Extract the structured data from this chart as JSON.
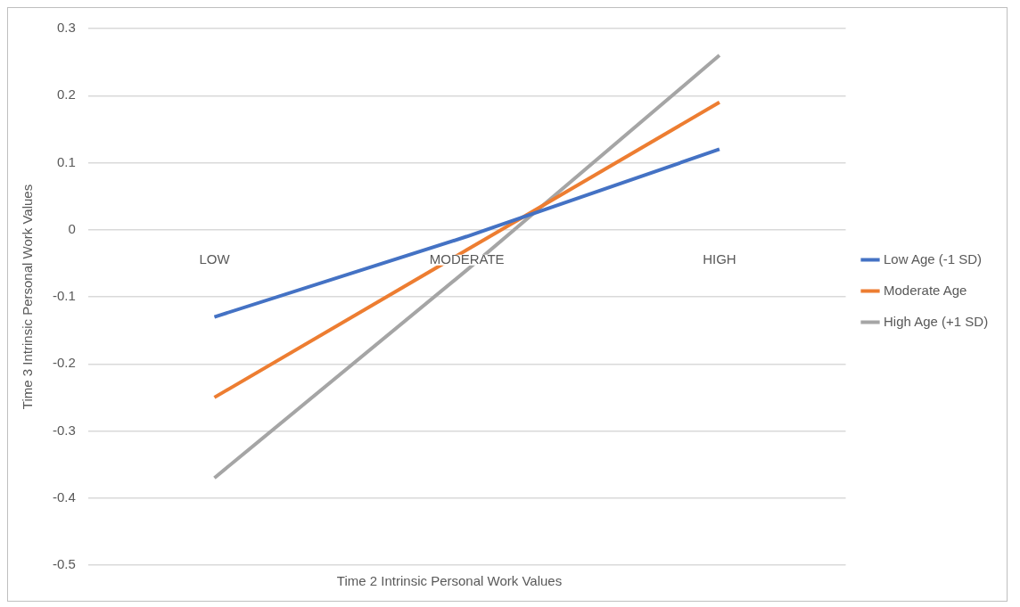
{
  "chart_data": {
    "type": "line",
    "xlabel": "Time 2 Intrinsic Personal Work Values",
    "ylabel": "Time 3 Intrinsic Personal Work Values",
    "categories": [
      "LOW",
      "MODERATE",
      "HIGH"
    ],
    "series": [
      {
        "name": "Low Age (-1 SD)",
        "color": "#4472c4",
        "values": [
          -0.13,
          -0.01,
          0.12
        ]
      },
      {
        "name": "Moderate Age",
        "color": "#ed7d31",
        "values": [
          -0.25,
          -0.03,
          0.19
        ]
      },
      {
        "name": "High Age (+1 SD)",
        "color": "#a5a5a5",
        "values": [
          -0.37,
          -0.06,
          0.26
        ]
      }
    ],
    "ylim": [
      -0.5,
      0.3
    ],
    "yticks": [
      -0.5,
      -0.4,
      -0.3,
      -0.2,
      -0.1,
      0,
      0.1,
      0.2,
      0.3
    ],
    "grid": "y",
    "legend": "right",
    "marker": "none",
    "line_style": "solid"
  }
}
